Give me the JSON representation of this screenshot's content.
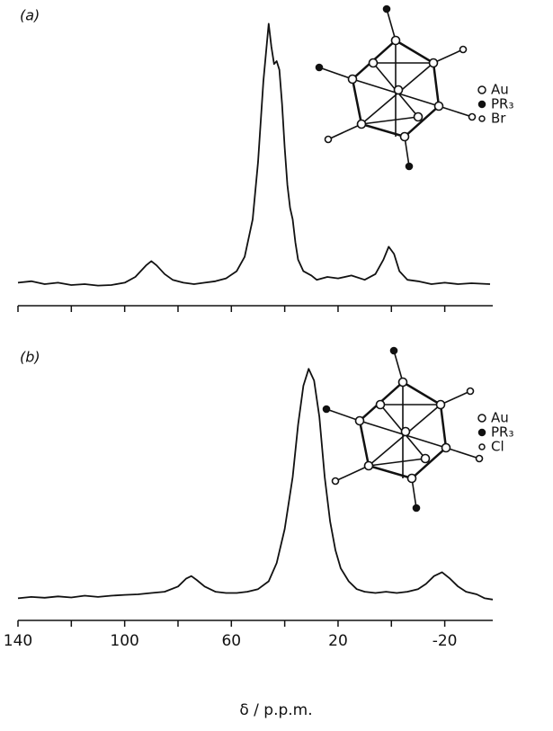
{
  "chart_data": [
    {
      "type": "line",
      "title": "(a)",
      "xlim": [
        140,
        -38
      ],
      "ylim": [
        0,
        100
      ],
      "xminor_ticks": [
        140,
        120,
        100,
        80,
        60,
        40,
        20,
        0,
        -20
      ],
      "legend": [
        "Au",
        "PR₃",
        "Br"
      ],
      "series": [
        {
          "color": "#111111",
          "x": [
            140,
            135,
            130,
            125,
            120,
            115,
            110,
            105,
            100,
            96,
            92,
            90,
            88,
            85,
            82,
            78,
            74,
            70,
            66,
            62,
            58,
            55,
            52,
            50,
            48,
            46,
            45,
            44,
            43,
            42,
            41,
            40,
            39,
            38,
            37,
            36,
            35,
            33,
            30,
            28,
            24,
            20,
            15,
            10,
            6,
            3,
            1,
            -1,
            -3,
            -6,
            -10,
            -15,
            -20,
            -25,
            -30,
            -37
          ],
          "values": [
            8,
            8.5,
            7.5,
            8,
            7.2,
            7.5,
            7,
            7.2,
            8,
            10,
            14,
            15.5,
            14,
            11,
            9,
            8,
            7.5,
            8,
            8.5,
            9.5,
            12,
            17,
            30,
            50,
            78,
            98,
            90,
            84,
            85,
            82,
            70,
            55,
            42,
            34,
            30,
            22,
            16,
            12,
            10.5,
            9,
            10,
            9.5,
            10.5,
            9,
            11,
            16,
            20.5,
            18,
            12,
            9,
            8.5,
            7.5,
            8,
            7.5,
            7.8,
            7.5
          ]
        }
      ]
    },
    {
      "type": "line",
      "title": "(b)",
      "xlabel": "δ / p.p.m.",
      "xlim": [
        140,
        -38
      ],
      "ylim": [
        0,
        100
      ],
      "xticks": [
        140,
        100,
        60,
        20,
        -20
      ],
      "xminor_ticks": [
        120,
        80,
        40,
        0
      ],
      "legend": [
        "Au",
        "PR₃",
        "Cl"
      ],
      "series": [
        {
          "color": "#111111",
          "x": [
            140,
            135,
            130,
            125,
            120,
            115,
            110,
            105,
            100,
            95,
            90,
            85,
            80,
            77,
            75,
            73,
            70,
            66,
            62,
            58,
            54,
            50,
            46,
            43,
            40,
            37,
            35,
            33,
            31,
            29,
            27,
            25,
            23,
            21,
            19,
            16,
            13,
            10,
            6,
            2,
            -2,
            -6,
            -10,
            -13,
            -16,
            -19,
            -22,
            -25,
            -28,
            -32,
            -35,
            -38
          ],
          "values": [
            8.5,
            9,
            8.7,
            9.2,
            8.8,
            9.5,
            9,
            9.5,
            9.8,
            10,
            10.5,
            11,
            13,
            16,
            17,
            15.5,
            13,
            11,
            10.5,
            10.5,
            11,
            12,
            15,
            22,
            35,
            55,
            75,
            90,
            96.5,
            92,
            78,
            55,
            38,
            27,
            20,
            15,
            12,
            11,
            10.5,
            11,
            10.5,
            11,
            12,
            14,
            17,
            18.5,
            16,
            13,
            11,
            10,
            8.5,
            8
          ]
        }
      ]
    }
  ]
}
